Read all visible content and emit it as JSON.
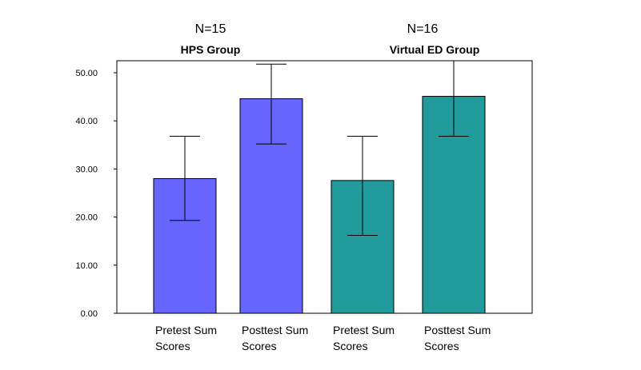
{
  "chart_data": {
    "type": "bar",
    "ylim": [
      0,
      52.5
    ],
    "yticks": [
      "0.00",
      "10.00",
      "20.00",
      "30.00",
      "40.00",
      "50.00"
    ],
    "grid": false,
    "groups": [
      {
        "n_label": "N=15",
        "name": "HPS Group",
        "color": "#6666ff"
      },
      {
        "n_label": "N=16",
        "name": "Virtual ED Group",
        "color": "#209a9a"
      }
    ],
    "bars": [
      {
        "group": 0,
        "label_line1": "Pretest Sum",
        "label_line2": "Scores",
        "value": 28.0,
        "err_low": 19.3,
        "err_high": 36.8
      },
      {
        "group": 0,
        "label_line1": "Posttest Sum",
        "label_line2": "Scores",
        "value": 44.6,
        "err_low": 35.2,
        "err_high": 51.8
      },
      {
        "group": 1,
        "label_line1": "Pretest Sum",
        "label_line2": "Scores",
        "value": 27.6,
        "err_low": 16.2,
        "err_high": 36.8
      },
      {
        "group": 1,
        "label_line1": "Posttest Sum",
        "label_line2": "Scores",
        "value": 45.1,
        "err_low": 36.8,
        "err_high": 52.5
      }
    ]
  }
}
